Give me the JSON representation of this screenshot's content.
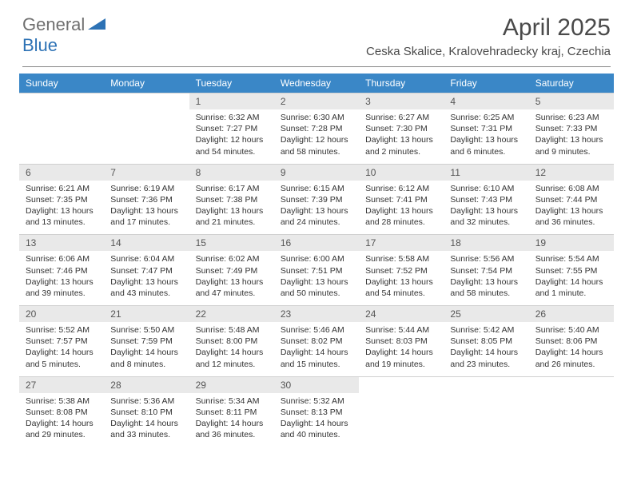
{
  "colors": {
    "header_bg": "#3a87c7",
    "header_text": "#ffffff",
    "daynum_bg": "#e9e9e9",
    "daynum_text": "#555555",
    "body_text": "#333333",
    "logo_gray": "#6f6f6f",
    "logo_blue": "#2d72b5",
    "page_bg": "#ffffff",
    "rule": "#888888"
  },
  "logo": {
    "text1": "General",
    "text2": "Blue"
  },
  "title": "April 2025",
  "location": "Ceska Skalice, Kralovehradecky kraj, Czechia",
  "day_headers": [
    "Sunday",
    "Monday",
    "Tuesday",
    "Wednesday",
    "Thursday",
    "Friday",
    "Saturday"
  ],
  "weeks": [
    [
      null,
      null,
      {
        "n": "1",
        "sunrise": "Sunrise: 6:32 AM",
        "sunset": "Sunset: 7:27 PM",
        "daylight": "Daylight: 12 hours and 54 minutes."
      },
      {
        "n": "2",
        "sunrise": "Sunrise: 6:30 AM",
        "sunset": "Sunset: 7:28 PM",
        "daylight": "Daylight: 12 hours and 58 minutes."
      },
      {
        "n": "3",
        "sunrise": "Sunrise: 6:27 AM",
        "sunset": "Sunset: 7:30 PM",
        "daylight": "Daylight: 13 hours and 2 minutes."
      },
      {
        "n": "4",
        "sunrise": "Sunrise: 6:25 AM",
        "sunset": "Sunset: 7:31 PM",
        "daylight": "Daylight: 13 hours and 6 minutes."
      },
      {
        "n": "5",
        "sunrise": "Sunrise: 6:23 AM",
        "sunset": "Sunset: 7:33 PM",
        "daylight": "Daylight: 13 hours and 9 minutes."
      }
    ],
    [
      {
        "n": "6",
        "sunrise": "Sunrise: 6:21 AM",
        "sunset": "Sunset: 7:35 PM",
        "daylight": "Daylight: 13 hours and 13 minutes."
      },
      {
        "n": "7",
        "sunrise": "Sunrise: 6:19 AM",
        "sunset": "Sunset: 7:36 PM",
        "daylight": "Daylight: 13 hours and 17 minutes."
      },
      {
        "n": "8",
        "sunrise": "Sunrise: 6:17 AM",
        "sunset": "Sunset: 7:38 PM",
        "daylight": "Daylight: 13 hours and 21 minutes."
      },
      {
        "n": "9",
        "sunrise": "Sunrise: 6:15 AM",
        "sunset": "Sunset: 7:39 PM",
        "daylight": "Daylight: 13 hours and 24 minutes."
      },
      {
        "n": "10",
        "sunrise": "Sunrise: 6:12 AM",
        "sunset": "Sunset: 7:41 PM",
        "daylight": "Daylight: 13 hours and 28 minutes."
      },
      {
        "n": "11",
        "sunrise": "Sunrise: 6:10 AM",
        "sunset": "Sunset: 7:43 PM",
        "daylight": "Daylight: 13 hours and 32 minutes."
      },
      {
        "n": "12",
        "sunrise": "Sunrise: 6:08 AM",
        "sunset": "Sunset: 7:44 PM",
        "daylight": "Daylight: 13 hours and 36 minutes."
      }
    ],
    [
      {
        "n": "13",
        "sunrise": "Sunrise: 6:06 AM",
        "sunset": "Sunset: 7:46 PM",
        "daylight": "Daylight: 13 hours and 39 minutes."
      },
      {
        "n": "14",
        "sunrise": "Sunrise: 6:04 AM",
        "sunset": "Sunset: 7:47 PM",
        "daylight": "Daylight: 13 hours and 43 minutes."
      },
      {
        "n": "15",
        "sunrise": "Sunrise: 6:02 AM",
        "sunset": "Sunset: 7:49 PM",
        "daylight": "Daylight: 13 hours and 47 minutes."
      },
      {
        "n": "16",
        "sunrise": "Sunrise: 6:00 AM",
        "sunset": "Sunset: 7:51 PM",
        "daylight": "Daylight: 13 hours and 50 minutes."
      },
      {
        "n": "17",
        "sunrise": "Sunrise: 5:58 AM",
        "sunset": "Sunset: 7:52 PM",
        "daylight": "Daylight: 13 hours and 54 minutes."
      },
      {
        "n": "18",
        "sunrise": "Sunrise: 5:56 AM",
        "sunset": "Sunset: 7:54 PM",
        "daylight": "Daylight: 13 hours and 58 minutes."
      },
      {
        "n": "19",
        "sunrise": "Sunrise: 5:54 AM",
        "sunset": "Sunset: 7:55 PM",
        "daylight": "Daylight: 14 hours and 1 minute."
      }
    ],
    [
      {
        "n": "20",
        "sunrise": "Sunrise: 5:52 AM",
        "sunset": "Sunset: 7:57 PM",
        "daylight": "Daylight: 14 hours and 5 minutes."
      },
      {
        "n": "21",
        "sunrise": "Sunrise: 5:50 AM",
        "sunset": "Sunset: 7:59 PM",
        "daylight": "Daylight: 14 hours and 8 minutes."
      },
      {
        "n": "22",
        "sunrise": "Sunrise: 5:48 AM",
        "sunset": "Sunset: 8:00 PM",
        "daylight": "Daylight: 14 hours and 12 minutes."
      },
      {
        "n": "23",
        "sunrise": "Sunrise: 5:46 AM",
        "sunset": "Sunset: 8:02 PM",
        "daylight": "Daylight: 14 hours and 15 minutes."
      },
      {
        "n": "24",
        "sunrise": "Sunrise: 5:44 AM",
        "sunset": "Sunset: 8:03 PM",
        "daylight": "Daylight: 14 hours and 19 minutes."
      },
      {
        "n": "25",
        "sunrise": "Sunrise: 5:42 AM",
        "sunset": "Sunset: 8:05 PM",
        "daylight": "Daylight: 14 hours and 23 minutes."
      },
      {
        "n": "26",
        "sunrise": "Sunrise: 5:40 AM",
        "sunset": "Sunset: 8:06 PM",
        "daylight": "Daylight: 14 hours and 26 minutes."
      }
    ],
    [
      {
        "n": "27",
        "sunrise": "Sunrise: 5:38 AM",
        "sunset": "Sunset: 8:08 PM",
        "daylight": "Daylight: 14 hours and 29 minutes."
      },
      {
        "n": "28",
        "sunrise": "Sunrise: 5:36 AM",
        "sunset": "Sunset: 8:10 PM",
        "daylight": "Daylight: 14 hours and 33 minutes."
      },
      {
        "n": "29",
        "sunrise": "Sunrise: 5:34 AM",
        "sunset": "Sunset: 8:11 PM",
        "daylight": "Daylight: 14 hours and 36 minutes."
      },
      {
        "n": "30",
        "sunrise": "Sunrise: 5:32 AM",
        "sunset": "Sunset: 8:13 PM",
        "daylight": "Daylight: 14 hours and 40 minutes."
      },
      null,
      null,
      null
    ]
  ]
}
